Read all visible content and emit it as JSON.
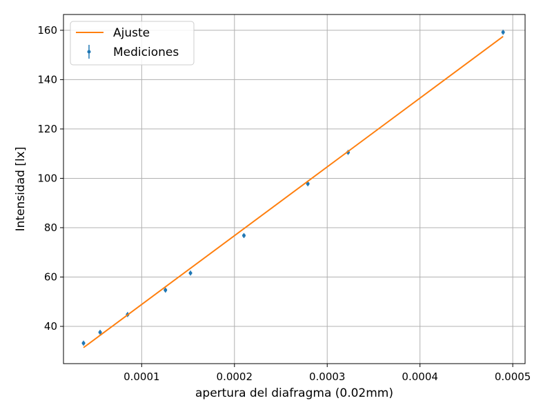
{
  "chart_data": {
    "type": "scatter",
    "xlabel": "apertura del diafragma (0.02mm)",
    "ylabel": "Intensidad [lx]",
    "xlim": [
      1.57e-05,
      0.0005133
    ],
    "ylim": [
      24.9,
      166.4
    ],
    "grid": true,
    "legend_position": "top-left",
    "x_ticks": [
      0.0001,
      0.0002,
      0.0003,
      0.0004,
      0.0005
    ],
    "x_tick_labels": [
      "0.0001",
      "0.0002",
      "0.0003",
      "0.0004",
      "0.0005"
    ],
    "y_ticks": [
      40,
      60,
      80,
      100,
      120,
      140,
      160
    ],
    "y_tick_labels": [
      "40",
      "60",
      "80",
      "100",
      "120",
      "140",
      "160"
    ],
    "series": [
      {
        "name": "Mediciones",
        "kind": "errorbar",
        "color": "#1f77b4",
        "x": [
          3.73e-05,
          5.52e-05,
          8.48e-05,
          0.0001256,
          0.0001526,
          0.0002102,
          0.0002791,
          0.0003225,
          0.0004896
        ],
        "y": [
          33.2,
          37.6,
          44.8,
          54.7,
          61.6,
          76.8,
          97.8,
          110.5,
          159.2
        ],
        "yerr": [
          1.0,
          1.0,
          1.0,
          1.0,
          1.0,
          1.0,
          1.0,
          1.0,
          1.0
        ]
      },
      {
        "name": "Ajuste",
        "kind": "line",
        "color": "#ff7f0e",
        "x": [
          3.73e-05,
          0.0004896
        ],
        "y": [
          31.4,
          157.5
        ]
      }
    ]
  }
}
